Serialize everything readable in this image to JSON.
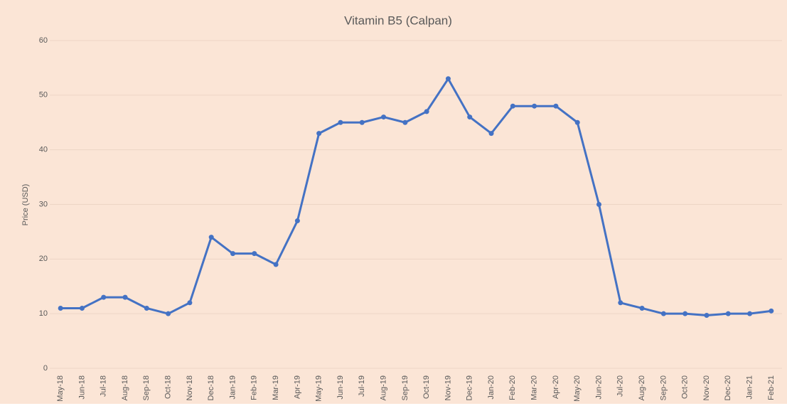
{
  "chart_data": {
    "type": "line",
    "title": "Vitamin B5 (Calpan)",
    "y_label": "Price (USD)",
    "categories": [
      "May-18",
      "Jun-18",
      "Jul-18",
      "Aug-18",
      "Sep-18",
      "Oct-18",
      "Nov-18",
      "Dec-18",
      "Jan-19",
      "Feb-19",
      "Mar-19",
      "Apr-19",
      "May-19",
      "Jun-19",
      "Jul-19",
      "Aug-19",
      "Sep-19",
      "Oct-19",
      "Nov-19",
      "Dec-19",
      "Jan-20",
      "Feb-20",
      "Mar-20",
      "Apr-20",
      "May-20",
      "Jun-20",
      "Jul-20",
      "Aug-20",
      "Sep-20",
      "Oct-20",
      "Nov-20",
      "Dec-20",
      "Jan-21",
      "Feb-21"
    ],
    "series": [
      {
        "name": "Price",
        "color": "#4472c4",
        "values": [
          11,
          11,
          13,
          13,
          11,
          10,
          12,
          24,
          21,
          21,
          19,
          27,
          43,
          45,
          45,
          46,
          45,
          47,
          53,
          46,
          43,
          48,
          48,
          48,
          45,
          30,
          12,
          11,
          10,
          10,
          9.7,
          10,
          10,
          10.5
        ]
      }
    ],
    "ylim": [
      0,
      60
    ],
    "yticks": [
      0,
      10,
      20,
      30,
      40,
      50,
      60
    ],
    "grid": true,
    "background": "#fbe5d6"
  }
}
